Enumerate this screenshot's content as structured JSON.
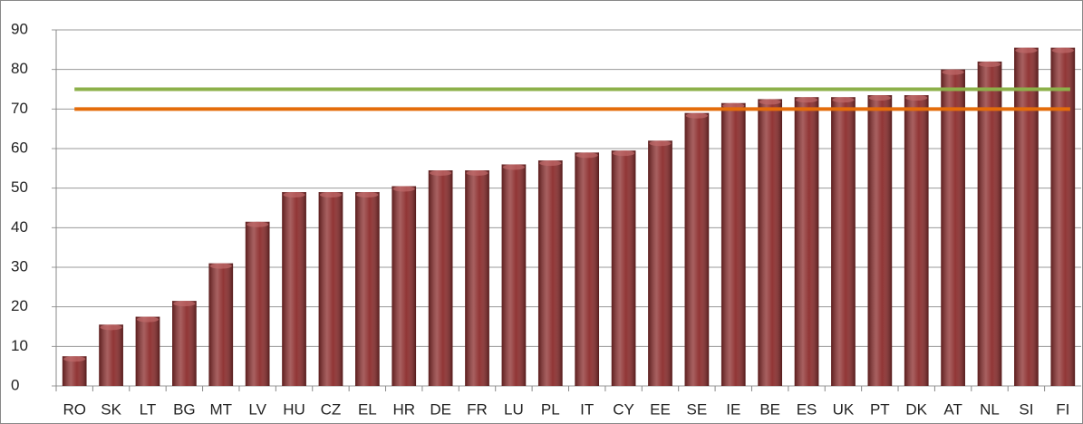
{
  "chart_data": {
    "type": "bar",
    "categories": [
      "RO",
      "SK",
      "LT",
      "BG",
      "MT",
      "LV",
      "HU",
      "CZ",
      "EL",
      "HR",
      "DE",
      "FR",
      "LU",
      "PL",
      "IT",
      "CY",
      "EE",
      "SE",
      "IE",
      "BE",
      "ES",
      "UK",
      "PT",
      "DK",
      "AT",
      "NL",
      "SI",
      "FI"
    ],
    "values": [
      7.5,
      15.5,
      17.5,
      21.5,
      31,
      41.5,
      49,
      49,
      49,
      50.5,
      54.5,
      54.5,
      56,
      57,
      59,
      59.5,
      62,
      69,
      71.5,
      72.5,
      73,
      73,
      73.5,
      73.5,
      80,
      82,
      85.5,
      85.5
    ],
    "color": "#8b2b2b",
    "ylim": [
      0,
      90
    ],
    "yticks": [
      0,
      10,
      20,
      30,
      40,
      50,
      60,
      70,
      80,
      90
    ],
    "grid": true,
    "reference_lines": [
      {
        "value": 75,
        "color": "#8db04a"
      },
      {
        "value": 70,
        "color": "#e46c0a"
      }
    ]
  }
}
